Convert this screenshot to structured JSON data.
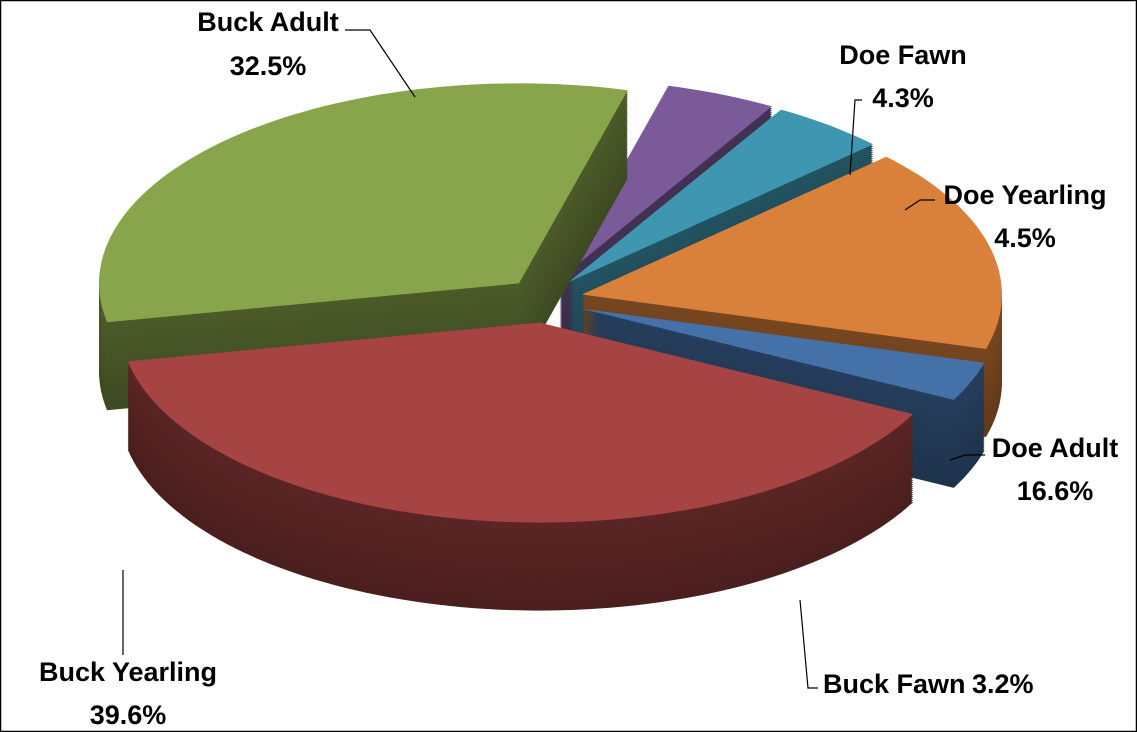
{
  "chart_data": {
    "type": "pie3d",
    "categories": [
      "Doe Fawn",
      "Doe Yearling",
      "Doe Adult",
      "Buck Fawn",
      "Buck Yearling",
      "Buck Adult"
    ],
    "values": [
      4.3,
      4.5,
      16.6,
      3.2,
      39.6,
      32.5
    ],
    "value_labels": [
      "4.3%",
      "4.5%",
      "16.6%",
      "3.2%",
      "39.6%",
      "32.5%"
    ],
    "colors": [
      "#7a5a98",
      "#3f96b0",
      "#d9803a",
      "#4471a8",
      "#a54442",
      "#89a54b"
    ]
  }
}
